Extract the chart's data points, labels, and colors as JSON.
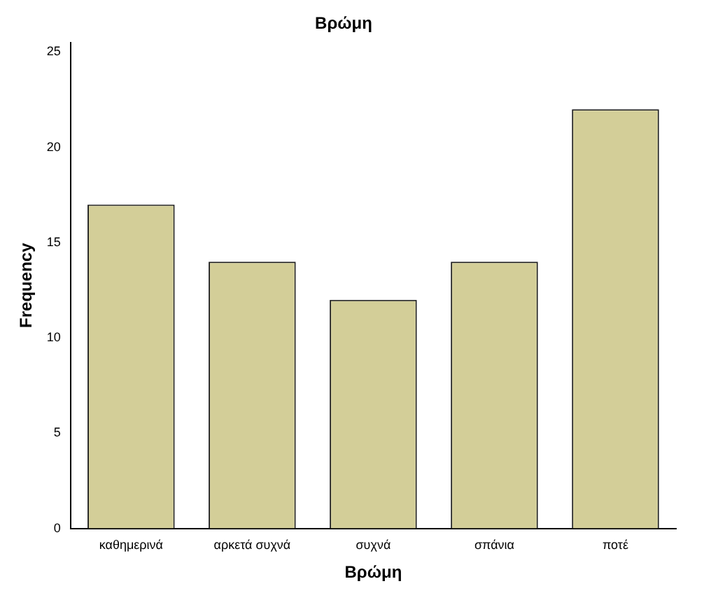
{
  "chart_data": {
    "type": "bar",
    "title": "Βρώμη",
    "xlabel": "Βρώμη",
    "ylabel": "Frequency",
    "categories": [
      "καθημερινά",
      "αρκετά συχνά",
      "συχνά",
      "σπάνια",
      "ποτέ"
    ],
    "values": [
      17,
      14,
      12,
      14,
      22
    ],
    "color": "#d3ce98",
    "ylim": [
      0,
      25.5
    ],
    "yticks": [
      0,
      5,
      10,
      15,
      20,
      25
    ],
    "grid": false,
    "legend": false
  }
}
